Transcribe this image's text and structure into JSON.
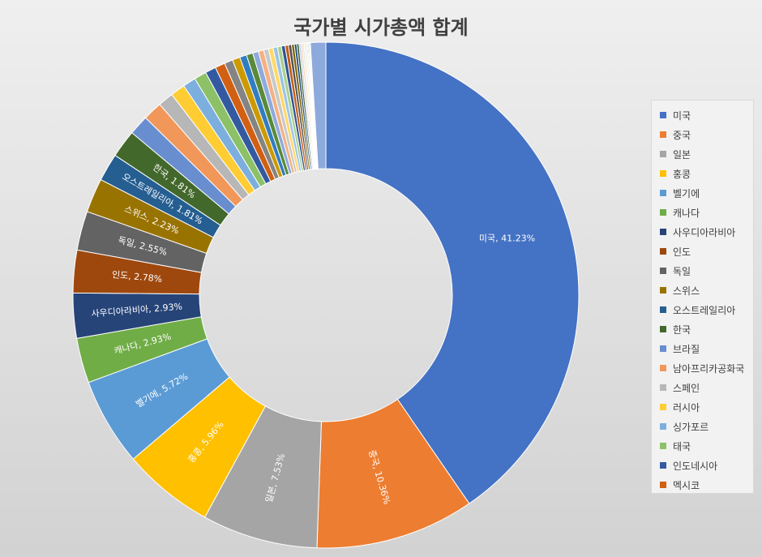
{
  "chart_data": {
    "type": "pie",
    "style": "donut",
    "title": "국가별 시가총액 합계",
    "legend_position": "right",
    "series": [
      {
        "name": "미국",
        "value": 41.23,
        "color": "#4472C4",
        "label": "미국, 41.23%"
      },
      {
        "name": "중국",
        "value": 10.36,
        "color": "#ED7D31",
        "label": "중국, 10.36%"
      },
      {
        "name": "일본",
        "value": 7.53,
        "color": "#A5A5A5",
        "label": "일본, 7.53%"
      },
      {
        "name": "홍콩",
        "value": 5.96,
        "color": "#FFC000",
        "label": "홍콩, 5.96%"
      },
      {
        "name": "벨기에",
        "value": 5.72,
        "color": "#5B9BD5",
        "label": "벨기에, 5.72%"
      },
      {
        "name": "캐나다",
        "value": 2.93,
        "color": "#70AD47",
        "label": "캐나다, 2.93%"
      },
      {
        "name": "사우디아라비아",
        "value": 2.93,
        "color": "#264478",
        "label": "사우디아라비아, 2.93%"
      },
      {
        "name": "인도",
        "value": 2.78,
        "color": "#9E480E",
        "label": "인도, 2.78%"
      },
      {
        "name": "독일",
        "value": 2.55,
        "color": "#636363",
        "label": "독일, 2.55%"
      },
      {
        "name": "스위스",
        "value": 2.23,
        "color": "#997300",
        "label": "스위스, 2.23%"
      },
      {
        "name": "오스트레일리아",
        "value": 1.81,
        "color": "#255E91",
        "label": "오스트레일리아, 1.81%"
      },
      {
        "name": "한국",
        "value": 1.81,
        "color": "#43682B",
        "label": "한국, 1.81%"
      },
      {
        "name": "브라질",
        "value": 1.3,
        "color": "#698ED0",
        "label": ""
      },
      {
        "name": "남아프리카공화국",
        "value": 1.25,
        "color": "#F1975A",
        "label": ""
      },
      {
        "name": "스페인",
        "value": 1.0,
        "color": "#B7B7B7",
        "label": ""
      },
      {
        "name": "러시아",
        "value": 0.95,
        "color": "#FFCD33",
        "label": ""
      },
      {
        "name": "싱가포르",
        "value": 0.85,
        "color": "#7CAFDD",
        "label": ""
      },
      {
        "name": "태국",
        "value": 0.8,
        "color": "#8CC168",
        "label": ""
      },
      {
        "name": "인도네시아",
        "value": 0.7,
        "color": "#335AA1",
        "label": ""
      },
      {
        "name": "멕시코",
        "value": 0.65,
        "color": "#D26012",
        "label": ""
      },
      {
        "name": "",
        "value": 0.55,
        "color": "#848484",
        "label": ""
      },
      {
        "name": "",
        "value": 0.5,
        "color": "#CC9A00",
        "label": ""
      },
      {
        "name": "",
        "value": 0.45,
        "color": "#327DC2",
        "label": ""
      },
      {
        "name": "",
        "value": 0.42,
        "color": "#5A8A39",
        "label": ""
      },
      {
        "name": "",
        "value": 0.38,
        "color": "#8FAADC",
        "label": ""
      },
      {
        "name": "",
        "value": 0.35,
        "color": "#F4B183",
        "label": ""
      },
      {
        "name": "",
        "value": 0.32,
        "color": "#C9C9C9",
        "label": ""
      },
      {
        "name": "",
        "value": 0.3,
        "color": "#FFD966",
        "label": ""
      },
      {
        "name": "",
        "value": 0.28,
        "color": "#9DC3E6",
        "label": ""
      },
      {
        "name": "",
        "value": 0.26,
        "color": "#A9D18E",
        "label": ""
      },
      {
        "name": "",
        "value": 0.24,
        "color": "#2F5597",
        "label": ""
      },
      {
        "name": "",
        "value": 0.22,
        "color": "#C55A11",
        "label": ""
      },
      {
        "name": "",
        "value": 0.2,
        "color": "#525252",
        "label": ""
      },
      {
        "name": "",
        "value": 0.18,
        "color": "#7F6000",
        "label": ""
      },
      {
        "name": "",
        "value": 0.16,
        "color": "#1F4E79",
        "label": ""
      },
      {
        "name": "",
        "value": 0.14,
        "color": "#375623",
        "label": ""
      },
      {
        "name": "",
        "value": 0.12,
        "color": "#B4C7E7",
        "label": ""
      },
      {
        "name": "",
        "value": 0.11,
        "color": "#F8CBAD",
        "label": ""
      },
      {
        "name": "",
        "value": 0.1,
        "color": "#DBDBDB",
        "label": ""
      },
      {
        "name": "",
        "value": 0.09,
        "color": "#FFE699",
        "label": ""
      },
      {
        "name": "",
        "value": 0.08,
        "color": "#BDD7EE",
        "label": ""
      },
      {
        "name": "",
        "value": 0.07,
        "color": "#C5E0B4",
        "label": ""
      },
      {
        "name": "",
        "value": 0.06,
        "color": "#203864",
        "label": ""
      },
      {
        "name": "",
        "value": 0.06,
        "color": "#843C0C",
        "label": ""
      },
      {
        "name": "",
        "value": 0.05,
        "color": "#3A3A3A",
        "label": ""
      },
      {
        "name": "",
        "value": 1.0,
        "color": "#8EA9DB",
        "label": ""
      }
    ]
  }
}
